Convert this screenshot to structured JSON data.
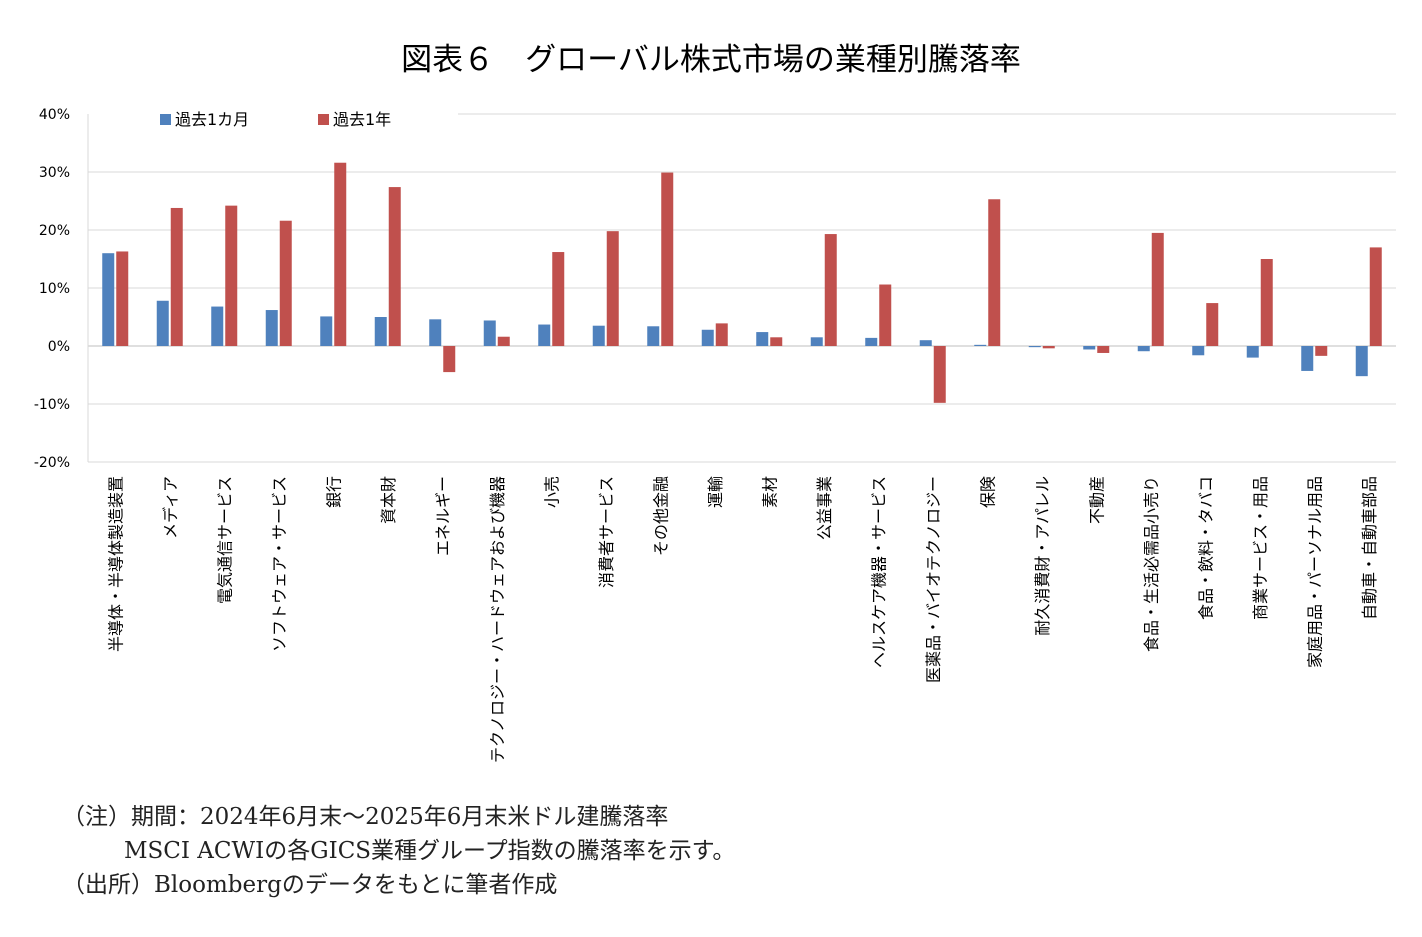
{
  "title": "図表６　グローバル株式市場の業種別騰落率",
  "chart_data": {
    "type": "bar",
    "categories": [
      "半導体・半導体製造装置",
      "メディア",
      "電気通信サービス",
      "ソフトウェア・サービス",
      "銀行",
      "資本財",
      "エネルギー",
      "テクノロジー・ハードウェアおよび機器",
      "小売",
      "消費者サービス",
      "その他金融",
      "運輸",
      "素材",
      "公益事業",
      "ヘルスケア機器・サービス",
      "医薬品・バイオテクノロジー",
      "保険",
      "耐久消費財・アパレル",
      "不動産",
      "食品・生活必需品小売り",
      "食品・飲料・タバコ",
      "商業サービス・用品",
      "家庭用品・パーソナル用品",
      "自動車・自動車部品"
    ],
    "series": [
      {
        "name": "過去1カ月",
        "color": "#4f81bd",
        "values": [
          16.0,
          7.8,
          6.8,
          6.2,
          5.1,
          5.0,
          4.6,
          4.4,
          3.7,
          3.5,
          3.4,
          2.8,
          2.4,
          1.5,
          1.4,
          1.0,
          0.2,
          -0.2,
          -0.6,
          -0.9,
          -1.6,
          -2.0,
          -4.3,
          -5.2
        ]
      },
      {
        "name": "過去1年",
        "color": "#c0504d",
        "values": [
          16.3,
          23.8,
          24.2,
          21.6,
          31.6,
          27.4,
          -4.5,
          1.6,
          16.2,
          19.8,
          29.9,
          3.9,
          1.5,
          19.3,
          10.6,
          -9.8,
          25.3,
          -0.4,
          -1.2,
          19.5,
          7.4,
          15.0,
          -1.7,
          17.0
        ]
      }
    ],
    "y_ticks": [
      "40%",
      "30%",
      "20%",
      "10%",
      "0%",
      "-10%",
      "-20%"
    ],
    "ylim": [
      -20,
      40
    ],
    "grid": true,
    "legend_position": "top-left"
  },
  "notes": {
    "line1": "（注）期間：2024年6月末～2025年6月末米ドル建騰落率",
    "line2": "MSCI ACWIの各GICS業種グループ指数の騰落率を示す。",
    "line3": "（出所）Bloombergのデータをもとに筆者作成"
  }
}
